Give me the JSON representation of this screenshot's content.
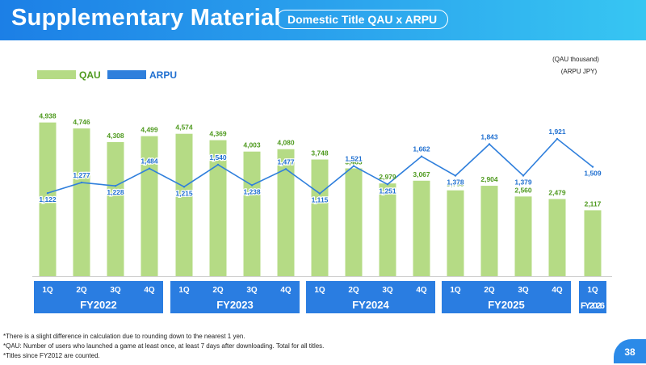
{
  "header": {
    "title": "Supplementary Material",
    "subtitle": "Domestic Title QAU x ARPU"
  },
  "units": {
    "qau": "(QAU thousand)",
    "arpu": "(ARPU JPY)"
  },
  "colors": {
    "qau_bar": "#b5db85",
    "qau_label": "#4f9a1f",
    "arpu_line": "#2f7fdc",
    "arpu_label": "#1f6fd0",
    "fy_box": "#2a7de1"
  },
  "chart_data": {
    "type": "bar+line",
    "categories": [
      "1Q",
      "2Q",
      "3Q",
      "4Q",
      "1Q",
      "2Q",
      "3Q",
      "4Q",
      "1Q",
      "2Q",
      "3Q",
      "4Q",
      "1Q",
      "2Q",
      "3Q",
      "4Q",
      "1Q"
    ],
    "fiscal_years": [
      {
        "label": "FY2022",
        "count": 4
      },
      {
        "label": "FY2023",
        "count": 4
      },
      {
        "label": "FY2024",
        "count": 4
      },
      {
        "label": "FY2025",
        "count": 4
      },
      {
        "label": "FY2026",
        "count": 1
      }
    ],
    "series": [
      {
        "name": "QAU",
        "type": "bar",
        "values": [
          4938,
          4746,
          4308,
          4499,
          4574,
          4369,
          4003,
          4080,
          3748,
          3463,
          2979,
          3067,
          2758,
          2904,
          2560,
          2479,
          2117
        ],
        "labels": [
          "4,938",
          "4,746",
          "4,308",
          "4,499",
          "4,574",
          "4,369",
          "4,003",
          "4,080",
          "3,748",
          "3,463",
          "2,979",
          "3,067",
          "2,758",
          "2,904",
          "2,560",
          "2,479",
          "2,117"
        ]
      },
      {
        "name": "ARPU",
        "type": "line",
        "values": [
          1122,
          1277,
          1228,
          1484,
          1215,
          1540,
          1238,
          1477,
          1115,
          1521,
          1251,
          1662,
          1378,
          1843,
          1379,
          1921,
          1509
        ],
        "labels": [
          "1,122",
          "1,277",
          "1,228",
          "1,484",
          "1,215",
          "1,540",
          "1,238",
          "1,477",
          "1,115",
          "1,521",
          "1,251",
          "1,662",
          "1,378",
          "1,843",
          "1,379",
          "1,921",
          "1,509"
        ]
      }
    ],
    "legend": [
      {
        "name": "QAU"
      },
      {
        "name": "ARPU"
      }
    ],
    "qau_axis_range": [
      0,
      5500
    ],
    "arpu_axis_range": [
      -100,
      2300
    ]
  },
  "footnotes": [
    "*There is a slight difference in calculation due to rounding down to the nearest 1 yen.",
    "*QAU: Number of users who launched a game at least once, at least 7 days after downloading. Total for all titles.",
    "*Titles since FY2012 are counted."
  ],
  "page_number": "38"
}
